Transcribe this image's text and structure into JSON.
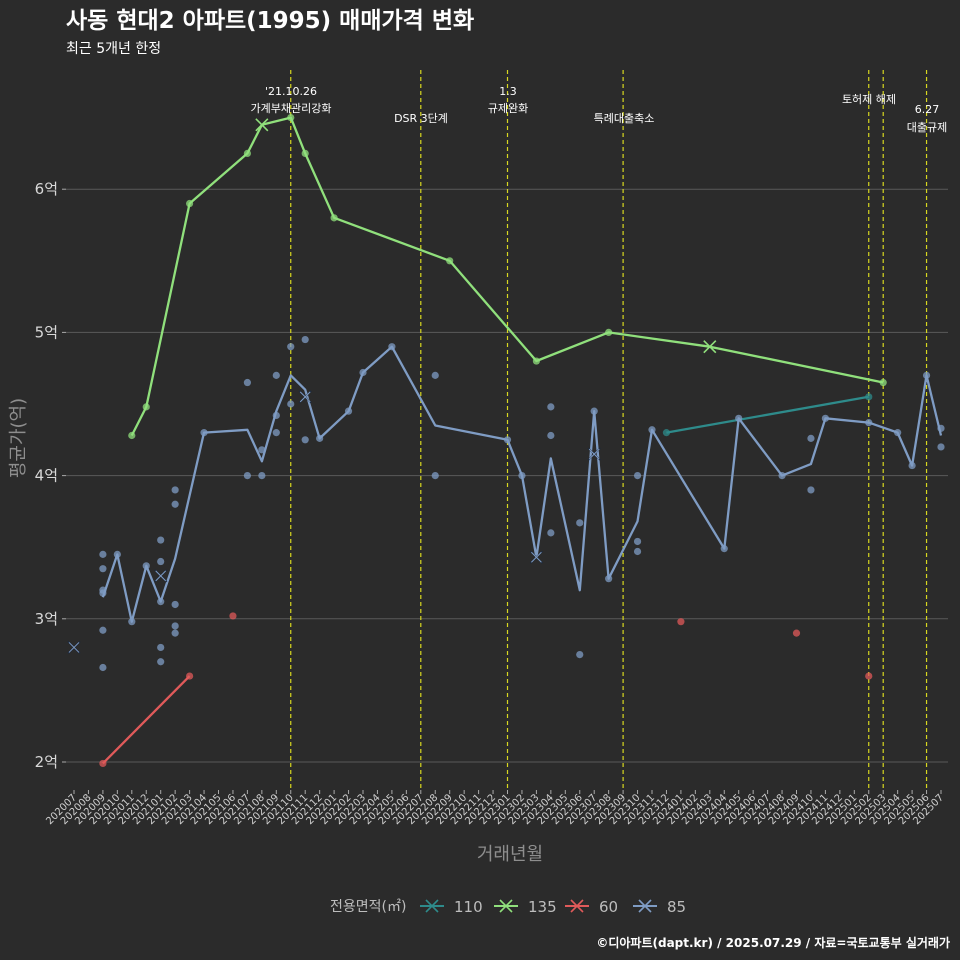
{
  "title": "사동 현대2 아파트(1995) 매매가격 변화",
  "subtitle": "최근 5개년 한정",
  "caption": "©디아파트(dapt.kr) / 2025.07.29 / 자료=국토교통부 실거래가",
  "chart_data": {
    "type": "line",
    "xlabel": "거래년월",
    "ylabel": "평균가(억)",
    "x_categories": [
      "202007",
      "202008",
      "202009",
      "202010",
      "202011",
      "202012",
      "202101",
      "202102",
      "202103",
      "202104",
      "202105",
      "202106",
      "202107",
      "202108",
      "202109",
      "202110",
      "202111",
      "202112",
      "202201",
      "202202",
      "202203",
      "202204",
      "202205",
      "202206",
      "202207",
      "202208",
      "202209",
      "202210",
      "202211",
      "202212",
      "202301",
      "202302",
      "202303",
      "202304",
      "202305",
      "202306",
      "202307",
      "202308",
      "202309",
      "202310",
      "202311",
      "202312",
      "202401",
      "202402",
      "202403",
      "202404",
      "202405",
      "202406",
      "202407",
      "202408",
      "202409",
      "202410",
      "202411",
      "202412",
      "202501",
      "202502",
      "202503",
      "202504",
      "202505",
      "202506",
      "202507"
    ],
    "y_ticks": [
      2,
      3,
      4,
      5,
      6
    ],
    "y_tick_labels": [
      "2억",
      "3억",
      "4억",
      "5억",
      "6억"
    ],
    "ylim": [
      1.75,
      6.85
    ],
    "grid": true,
    "legend_title": "전용면적(㎡)",
    "legend_position": "bottom",
    "series": [
      {
        "name": "110",
        "color": "#2e8b8b",
        "line": [
          [
            "202312",
            4.3
          ],
          [
            "202502",
            4.55
          ]
        ],
        "points": [
          [
            "202312",
            4.3
          ],
          [
            "202502",
            4.55
          ]
        ],
        "crosses": []
      },
      {
        "name": "135",
        "color": "#90e07c",
        "line": [
          [
            "202011",
            4.28
          ],
          [
            "202012",
            4.48
          ],
          [
            "202103",
            5.9
          ],
          [
            "202107",
            6.25
          ],
          [
            "202108",
            6.45
          ],
          [
            "202110",
            6.5
          ],
          [
            "202111",
            6.25
          ],
          [
            "202201",
            5.8
          ],
          [
            "202209",
            5.5
          ],
          [
            "202303",
            4.8
          ],
          [
            "202308",
            5.0
          ],
          [
            "202403",
            4.9
          ],
          [
            "202503",
            4.65
          ]
        ],
        "points": [
          [
            "202011",
            4.28
          ],
          [
            "202012",
            4.48
          ],
          [
            "202103",
            5.9
          ],
          [
            "202107",
            6.25
          ],
          [
            "202110",
            6.5
          ],
          [
            "202111",
            6.25
          ],
          [
            "202201",
            5.8
          ],
          [
            "202209",
            5.5
          ],
          [
            "202303",
            4.8
          ],
          [
            "202308",
            5.0
          ],
          [
            "202503",
            4.65
          ]
        ],
        "crosses": [
          [
            "202108",
            6.45
          ],
          [
            "202403",
            4.9
          ]
        ]
      },
      {
        "name": "60",
        "color": "#e05a5a",
        "line": [
          [
            "202009",
            1.99
          ],
          [
            "202103",
            2.6
          ]
        ],
        "points": [
          [
            "202009",
            1.99
          ],
          [
            "202103",
            2.6
          ],
          [
            "202106",
            3.02
          ],
          [
            "202401",
            2.98
          ],
          [
            "202409",
            2.9
          ],
          [
            "202502",
            2.6
          ]
        ],
        "crosses": []
      },
      {
        "name": "85",
        "color": "#7f9cc4",
        "line": [
          [
            "202009",
            3.15
          ],
          [
            "202010",
            3.45
          ],
          [
            "202011",
            2.98
          ],
          [
            "202012",
            3.37
          ],
          [
            "202101",
            3.12
          ],
          [
            "202102",
            3.42
          ],
          [
            "202104",
            4.3
          ],
          [
            "202107",
            4.32
          ],
          [
            "202108",
            4.1
          ],
          [
            "202109",
            4.45
          ],
          [
            "202110",
            4.7
          ],
          [
            "202111",
            4.6
          ],
          [
            "202112",
            4.26
          ],
          [
            "202202",
            4.45
          ],
          [
            "202203",
            4.72
          ],
          [
            "202205",
            4.9
          ],
          [
            "202208",
            4.35
          ],
          [
            "202301",
            4.25
          ],
          [
            "202302",
            4.0
          ],
          [
            "202303",
            3.43
          ],
          [
            "202304",
            4.12
          ],
          [
            "202306",
            3.2
          ],
          [
            "202307",
            4.45
          ],
          [
            "202308",
            3.28
          ],
          [
            "202310",
            3.68
          ],
          [
            "202311",
            4.32
          ],
          [
            "202404",
            3.49
          ],
          [
            "202405",
            4.4
          ],
          [
            "202408",
            4.0
          ],
          [
            "202410",
            4.08
          ],
          [
            "202411",
            4.4
          ],
          [
            "202502",
            4.37
          ],
          [
            "202504",
            4.3
          ],
          [
            "202505",
            4.07
          ],
          [
            "202506",
            4.7
          ],
          [
            "202507",
            4.28
          ]
        ],
        "points": [
          [
            "202009",
            3.45
          ],
          [
            "202009",
            3.35
          ],
          [
            "202009",
            3.2
          ],
          [
            "202009",
            3.18
          ],
          [
            "202009",
            2.92
          ],
          [
            "202009",
            2.66
          ],
          [
            "202010",
            3.45
          ],
          [
            "202011",
            2.98
          ],
          [
            "202012",
            3.37
          ],
          [
            "202101",
            3.55
          ],
          [
            "202101",
            3.4
          ],
          [
            "202101",
            3.12
          ],
          [
            "202101",
            2.8
          ],
          [
            "202101",
            2.7
          ],
          [
            "202102",
            3.9
          ],
          [
            "202102",
            3.8
          ],
          [
            "202102",
            3.1
          ],
          [
            "202102",
            2.95
          ],
          [
            "202102",
            2.9
          ],
          [
            "202104",
            4.3
          ],
          [
            "202107",
            4.65
          ],
          [
            "202107",
            4.0
          ],
          [
            "202108",
            4.18
          ],
          [
            "202108",
            4.0
          ],
          [
            "202109",
            4.7
          ],
          [
            "202109",
            4.42
          ],
          [
            "202109",
            4.3
          ],
          [
            "202110",
            4.9
          ],
          [
            "202110",
            4.5
          ],
          [
            "202111",
            4.95
          ],
          [
            "202111",
            4.25
          ],
          [
            "202112",
            4.26
          ],
          [
            "202202",
            4.45
          ],
          [
            "202203",
            4.72
          ],
          [
            "202205",
            4.9
          ],
          [
            "202208",
            4.7
          ],
          [
            "202208",
            4.0
          ],
          [
            "202301",
            4.25
          ],
          [
            "202302",
            4.0
          ],
          [
            "202304",
            4.48
          ],
          [
            "202304",
            4.28
          ],
          [
            "202304",
            3.6
          ],
          [
            "202306",
            3.67
          ],
          [
            "202306",
            2.75
          ],
          [
            "202307",
            4.45
          ],
          [
            "202308",
            3.28
          ],
          [
            "202310",
            4.0
          ],
          [
            "202310",
            3.54
          ],
          [
            "202310",
            3.47
          ],
          [
            "202311",
            4.32
          ],
          [
            "202404",
            3.49
          ],
          [
            "202405",
            4.4
          ],
          [
            "202408",
            4.0
          ],
          [
            "202410",
            4.26
          ],
          [
            "202410",
            3.9
          ],
          [
            "202411",
            4.4
          ],
          [
            "202502",
            4.37
          ],
          [
            "202504",
            4.3
          ],
          [
            "202505",
            4.07
          ],
          [
            "202506",
            4.7
          ],
          [
            "202507",
            4.33
          ],
          [
            "202507",
            4.2
          ]
        ],
        "crosses": [
          [
            "202007",
            2.8
          ],
          [
            "202101",
            3.3
          ],
          [
            "202111",
            4.55
          ],
          [
            "202303",
            3.43
          ],
          [
            "202307",
            4.15
          ]
        ]
      }
    ],
    "events": [
      {
        "x": "202110",
        "lines": [
          "'21.10.26",
          "가계부채관리강화"
        ]
      },
      {
        "x": "202207",
        "lines": [
          "DSR 3단계"
        ]
      },
      {
        "x": "202301",
        "lines": [
          "1.3",
          "규제완화"
        ]
      },
      {
        "x": "202309",
        "lines": [
          "특례대출축소"
        ]
      },
      {
        "x": "202502",
        "lines": [
          "토허제 해제"
        ]
      },
      {
        "x": "202503",
        "lines": []
      },
      {
        "x": "202506",
        "lines": [
          "6.27",
          "대출규제"
        ]
      }
    ]
  }
}
